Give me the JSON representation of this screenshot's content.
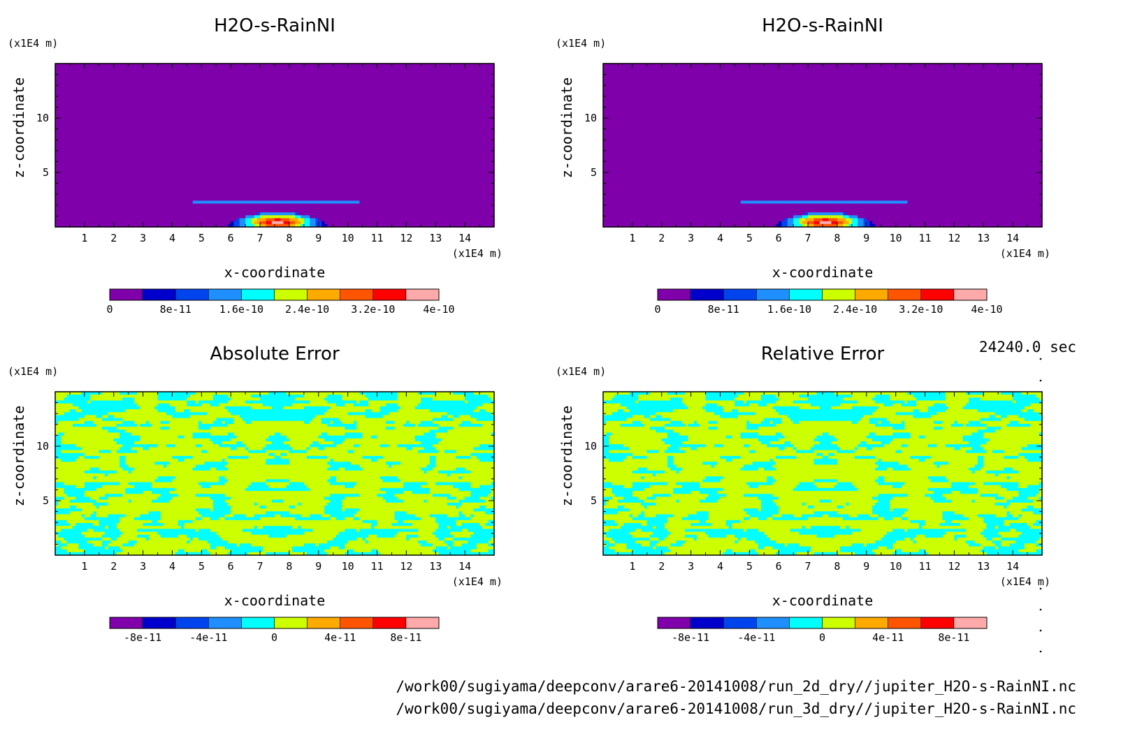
{
  "time_label": "24240.0 sec",
  "footer_lines": [
    "/work00/sugiyama/deepconv/arare6-20141008/run_2d_dry//jupiter_H2O-s-RainNI.nc",
    "/work00/sugiyama/deepconv/arare6-20141008/run_3d_dry//jupiter_H2O-s-RainNI.nc"
  ],
  "palette": [
    "#7f00aa",
    "#0000cc",
    "#0044ee",
    "#1f8fff",
    "#00ffff",
    "#ccff00",
    "#ffaa00",
    "#ff5500",
    "#ff0000",
    "#ffaaaa"
  ],
  "chart_data": [
    {
      "type": "heatmap",
      "title": "H2O-s-RainNI",
      "xlabel": "x-coordinate",
      "ylabel": "z-coordinate",
      "x_unit": "(x1E4 m)",
      "y_unit": "(x1E4 m)",
      "xlim": [
        0,
        15
      ],
      "ylim": [
        0,
        15
      ],
      "x_ticks": [
        1,
        2,
        3,
        4,
        5,
        6,
        7,
        8,
        9,
        10,
        11,
        12,
        13,
        14
      ],
      "y_ticks": [
        5,
        10
      ],
      "background_level": 0,
      "features": [
        {
          "kind": "band",
          "x": [
            4.7,
            10.4
          ],
          "z": [
            2.1,
            2.5
          ],
          "value": 1.2e-10
        },
        {
          "kind": "plume",
          "x_center": 7.6,
          "half_width": 1.9,
          "height": 1.4,
          "peak": 4e-10
        }
      ],
      "colorbar": {
        "levels": [
          0,
          4e-11,
          8e-11,
          1.2e-10,
          1.6e-10,
          2e-10,
          2.4e-10,
          2.8e-10,
          3.2e-10,
          3.6e-10,
          4e-10
        ],
        "tick_labels": [
          "0",
          "8e-11",
          "1.6e-10",
          "2.4e-10",
          "3.2e-10",
          "4e-10"
        ]
      }
    },
    {
      "type": "heatmap",
      "title": "H2O-s-RainNI",
      "xlabel": "x-coordinate",
      "ylabel": "z-coordinate",
      "x_unit": "(x1E4 m)",
      "y_unit": "(x1E4 m)",
      "xlim": [
        0,
        15
      ],
      "ylim": [
        0,
        15
      ],
      "x_ticks": [
        1,
        2,
        3,
        4,
        5,
        6,
        7,
        8,
        9,
        10,
        11,
        12,
        13,
        14
      ],
      "y_ticks": [
        5,
        10
      ],
      "background_level": 0,
      "features": [
        {
          "kind": "band",
          "x": [
            4.7,
            10.4
          ],
          "z": [
            2.1,
            2.5
          ],
          "value": 1.2e-10
        },
        {
          "kind": "plume",
          "x_center": 7.6,
          "half_width": 1.9,
          "height": 1.4,
          "peak": 4e-10
        }
      ],
      "colorbar": {
        "levels": [
          0,
          4e-11,
          8e-11,
          1.2e-10,
          1.6e-10,
          2e-10,
          2.4e-10,
          2.8e-10,
          3.2e-10,
          3.6e-10,
          4e-10
        ],
        "tick_labels": [
          "0",
          "8e-11",
          "1.6e-10",
          "2.4e-10",
          "3.2e-10",
          "4e-10"
        ]
      }
    },
    {
      "type": "heatmap",
      "title": "Absolute Error",
      "xlabel": "x-coordinate",
      "ylabel": "z-coordinate",
      "x_unit": "(x1E4 m)",
      "y_unit": "(x1E4 m)",
      "xlim": [
        0,
        15
      ],
      "ylim": [
        0,
        15
      ],
      "x_ticks": [
        1,
        2,
        3,
        4,
        5,
        6,
        7,
        8,
        9,
        10,
        11,
        12,
        13,
        14
      ],
      "y_ticks": [
        5,
        10
      ],
      "field": "noise_two_level",
      "dominant_value": 1e-11,
      "secondary_value": -1e-11,
      "colorbar": {
        "levels": [
          -1e-10,
          -8e-11,
          -6e-11,
          -4e-11,
          -2e-11,
          0,
          2e-11,
          4e-11,
          6e-11,
          8e-11,
          1e-10
        ],
        "tick_labels": [
          "-8e-11",
          "-4e-11",
          "0",
          "4e-11",
          "8e-11"
        ]
      }
    },
    {
      "type": "heatmap",
      "title": "Relative Error",
      "xlabel": "x-coordinate",
      "ylabel": "z-coordinate",
      "x_unit": "(x1E4 m)",
      "y_unit": "(x1E4 m)",
      "xlim": [
        0,
        15
      ],
      "ylim": [
        0,
        15
      ],
      "x_ticks": [
        1,
        2,
        3,
        4,
        5,
        6,
        7,
        8,
        9,
        10,
        11,
        12,
        13,
        14
      ],
      "y_ticks": [
        5,
        10
      ],
      "field": "noise_two_level",
      "dominant_value": 1e-11,
      "secondary_value": -1e-11,
      "colorbar": {
        "levels": [
          -1e-10,
          -8e-11,
          -6e-11,
          -4e-11,
          -2e-11,
          0,
          2e-11,
          4e-11,
          6e-11,
          8e-11,
          1e-10
        ],
        "tick_labels": [
          "-8e-11",
          "-4e-11",
          "0",
          "4e-11",
          "8e-11"
        ]
      }
    }
  ]
}
